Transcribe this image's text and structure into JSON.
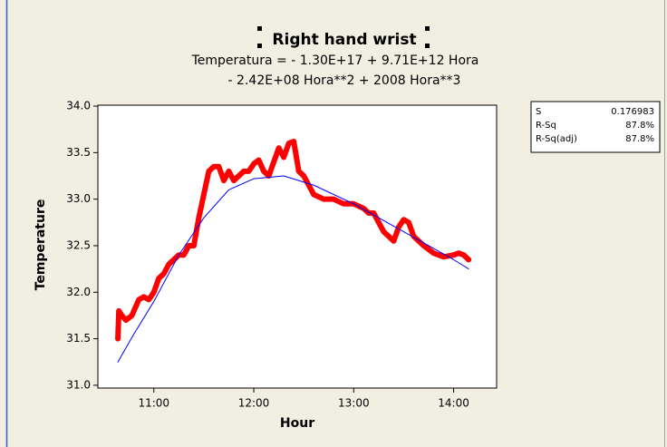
{
  "chart_data": {
    "type": "line",
    "title": "Right hand wrist",
    "subtitle": [
      "Temperatura =  - 1.30E+17 + 9.71E+12 Hora",
      "- 2.42E+08 Hora**2 + 2008 Hora**3"
    ],
    "xlabel": "Hour",
    "ylabel": "Temperature",
    "xlim": [
      10.44,
      14.43
    ],
    "ylim": [
      30.97,
      34.01
    ],
    "xticks": [
      {
        "value": 11,
        "label": "11:00"
      },
      {
        "value": 12,
        "label": "12:00"
      },
      {
        "value": 13,
        "label": "13:00"
      },
      {
        "value": 14,
        "label": "14:00"
      }
    ],
    "yticks": [
      {
        "value": 31,
        "label": "31.0"
      },
      31.5,
      {
        "value": 32,
        "label": "32.0"
      },
      32.5,
      {
        "value": 33,
        "label": "33.0"
      },
      33.5,
      {
        "value": 34,
        "label": "34.0"
      }
    ],
    "series": [
      {
        "color": "#ff0000",
        "width": 6,
        "x": [
          10.64,
          10.65,
          10.68,
          10.72,
          10.78,
          10.85,
          10.9,
          10.95,
          11.0,
          11.05,
          11.1,
          11.15,
          11.2,
          11.25,
          11.3,
          11.35,
          11.4,
          11.45,
          11.5,
          11.55,
          11.6,
          11.65,
          11.7,
          11.75,
          11.8,
          11.9,
          11.95,
          12.0,
          12.05,
          12.1,
          12.15,
          12.2,
          12.25,
          12.3,
          12.35,
          12.4,
          12.45,
          12.5,
          12.55,
          12.6,
          12.7,
          12.8,
          12.9,
          13.0,
          13.1,
          13.15,
          13.2,
          13.3,
          13.35,
          13.4,
          13.45,
          13.5,
          13.55,
          13.6,
          13.7,
          13.8,
          13.9,
          14.0,
          14.05,
          14.1,
          14.15
        ],
        "values": [
          31.5,
          31.8,
          31.75,
          31.7,
          31.75,
          31.92,
          31.95,
          31.92,
          32.0,
          32.15,
          32.2,
          32.3,
          32.35,
          32.4,
          32.4,
          32.5,
          32.5,
          32.8,
          33.05,
          33.3,
          33.35,
          33.35,
          33.2,
          33.3,
          33.2,
          33.3,
          33.3,
          33.38,
          33.42,
          33.3,
          33.25,
          33.4,
          33.55,
          33.45,
          33.6,
          33.62,
          33.3,
          33.25,
          33.15,
          33.05,
          33.0,
          33.0,
          32.95,
          32.95,
          32.9,
          32.85,
          32.85,
          32.65,
          32.6,
          32.55,
          32.7,
          32.78,
          32.75,
          32.6,
          32.5,
          32.42,
          32.38,
          32.4,
          32.42,
          32.4,
          32.35
        ]
      },
      {
        "color": "#0000ff",
        "width": 1,
        "x": [
          10.64,
          10.8,
          11.0,
          11.25,
          11.5,
          11.75,
          12.0,
          12.3,
          12.6,
          13.0,
          13.5,
          14.0,
          14.15
        ],
        "values": [
          31.25,
          31.55,
          31.9,
          32.4,
          32.8,
          33.1,
          33.22,
          33.25,
          33.15,
          32.95,
          32.65,
          32.35,
          32.25
        ]
      }
    ],
    "stats": [
      [
        "S",
        "0.176983"
      ],
      [
        "R-Sq",
        "87.8%"
      ],
      [
        "R-Sq(adj)",
        "87.8%"
      ]
    ]
  }
}
